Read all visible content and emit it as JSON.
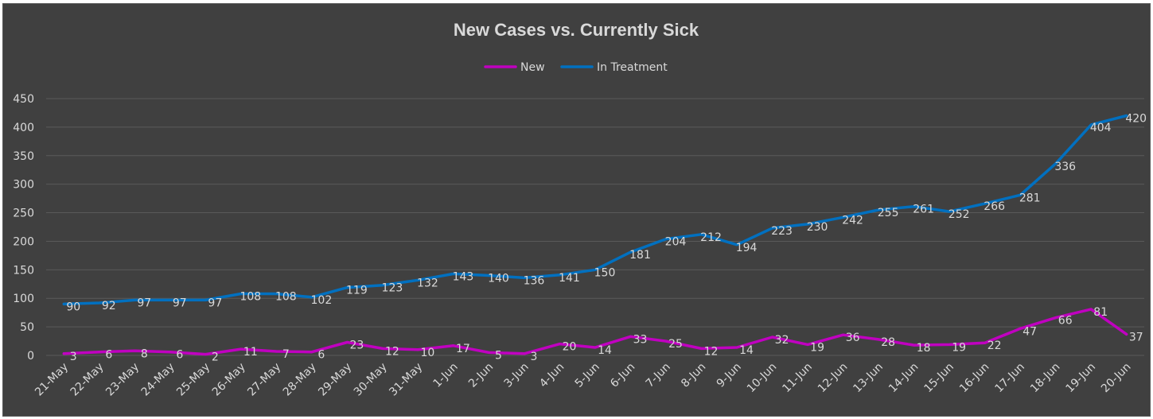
{
  "chart_data": {
    "type": "line",
    "title": "New Cases vs. Currently Sick",
    "xlabel": "",
    "ylabel": "",
    "ylim": [
      0,
      450
    ],
    "yticks": [
      0,
      50,
      100,
      150,
      200,
      250,
      300,
      350,
      400,
      450
    ],
    "grid": true,
    "legend_position": "top",
    "categories": [
      "21-May",
      "22-May",
      "23-May",
      "24-May",
      "25-May",
      "26-May",
      "27-May",
      "28-May",
      "29-May",
      "30-May",
      "31-May",
      "1-Jun",
      "2-Jun",
      "3-Jun",
      "4-Jun",
      "5-Jun",
      "6-Jun",
      "7-Jun",
      "8-Jun",
      "9-Jun",
      "10-Jun",
      "11-Jun",
      "12-Jun",
      "13-Jun",
      "14-Jun",
      "15-Jun",
      "16-Jun",
      "17-Jun",
      "18-Jun",
      "19-Jun",
      "20-Jun"
    ],
    "series": [
      {
        "name": "New",
        "color": "#c000c0",
        "values": [
          3,
          6,
          8,
          6,
          2,
          11,
          7,
          6,
          23,
          12,
          10,
          17,
          5,
          3,
          20,
          14,
          33,
          25,
          12,
          14,
          32,
          19,
          36,
          28,
          18,
          19,
          22,
          47,
          66,
          81,
          37
        ]
      },
      {
        "name": "In Treatment",
        "color": "#0070c0",
        "values": [
          90,
          92,
          97,
          97,
          97,
          108,
          108,
          102,
          119,
          123,
          132,
          143,
          140,
          136,
          141,
          150,
          181,
          204,
          212,
          194,
          223,
          230,
          242,
          255,
          261,
          252,
          266,
          281,
          336,
          404,
          420
        ]
      }
    ]
  }
}
